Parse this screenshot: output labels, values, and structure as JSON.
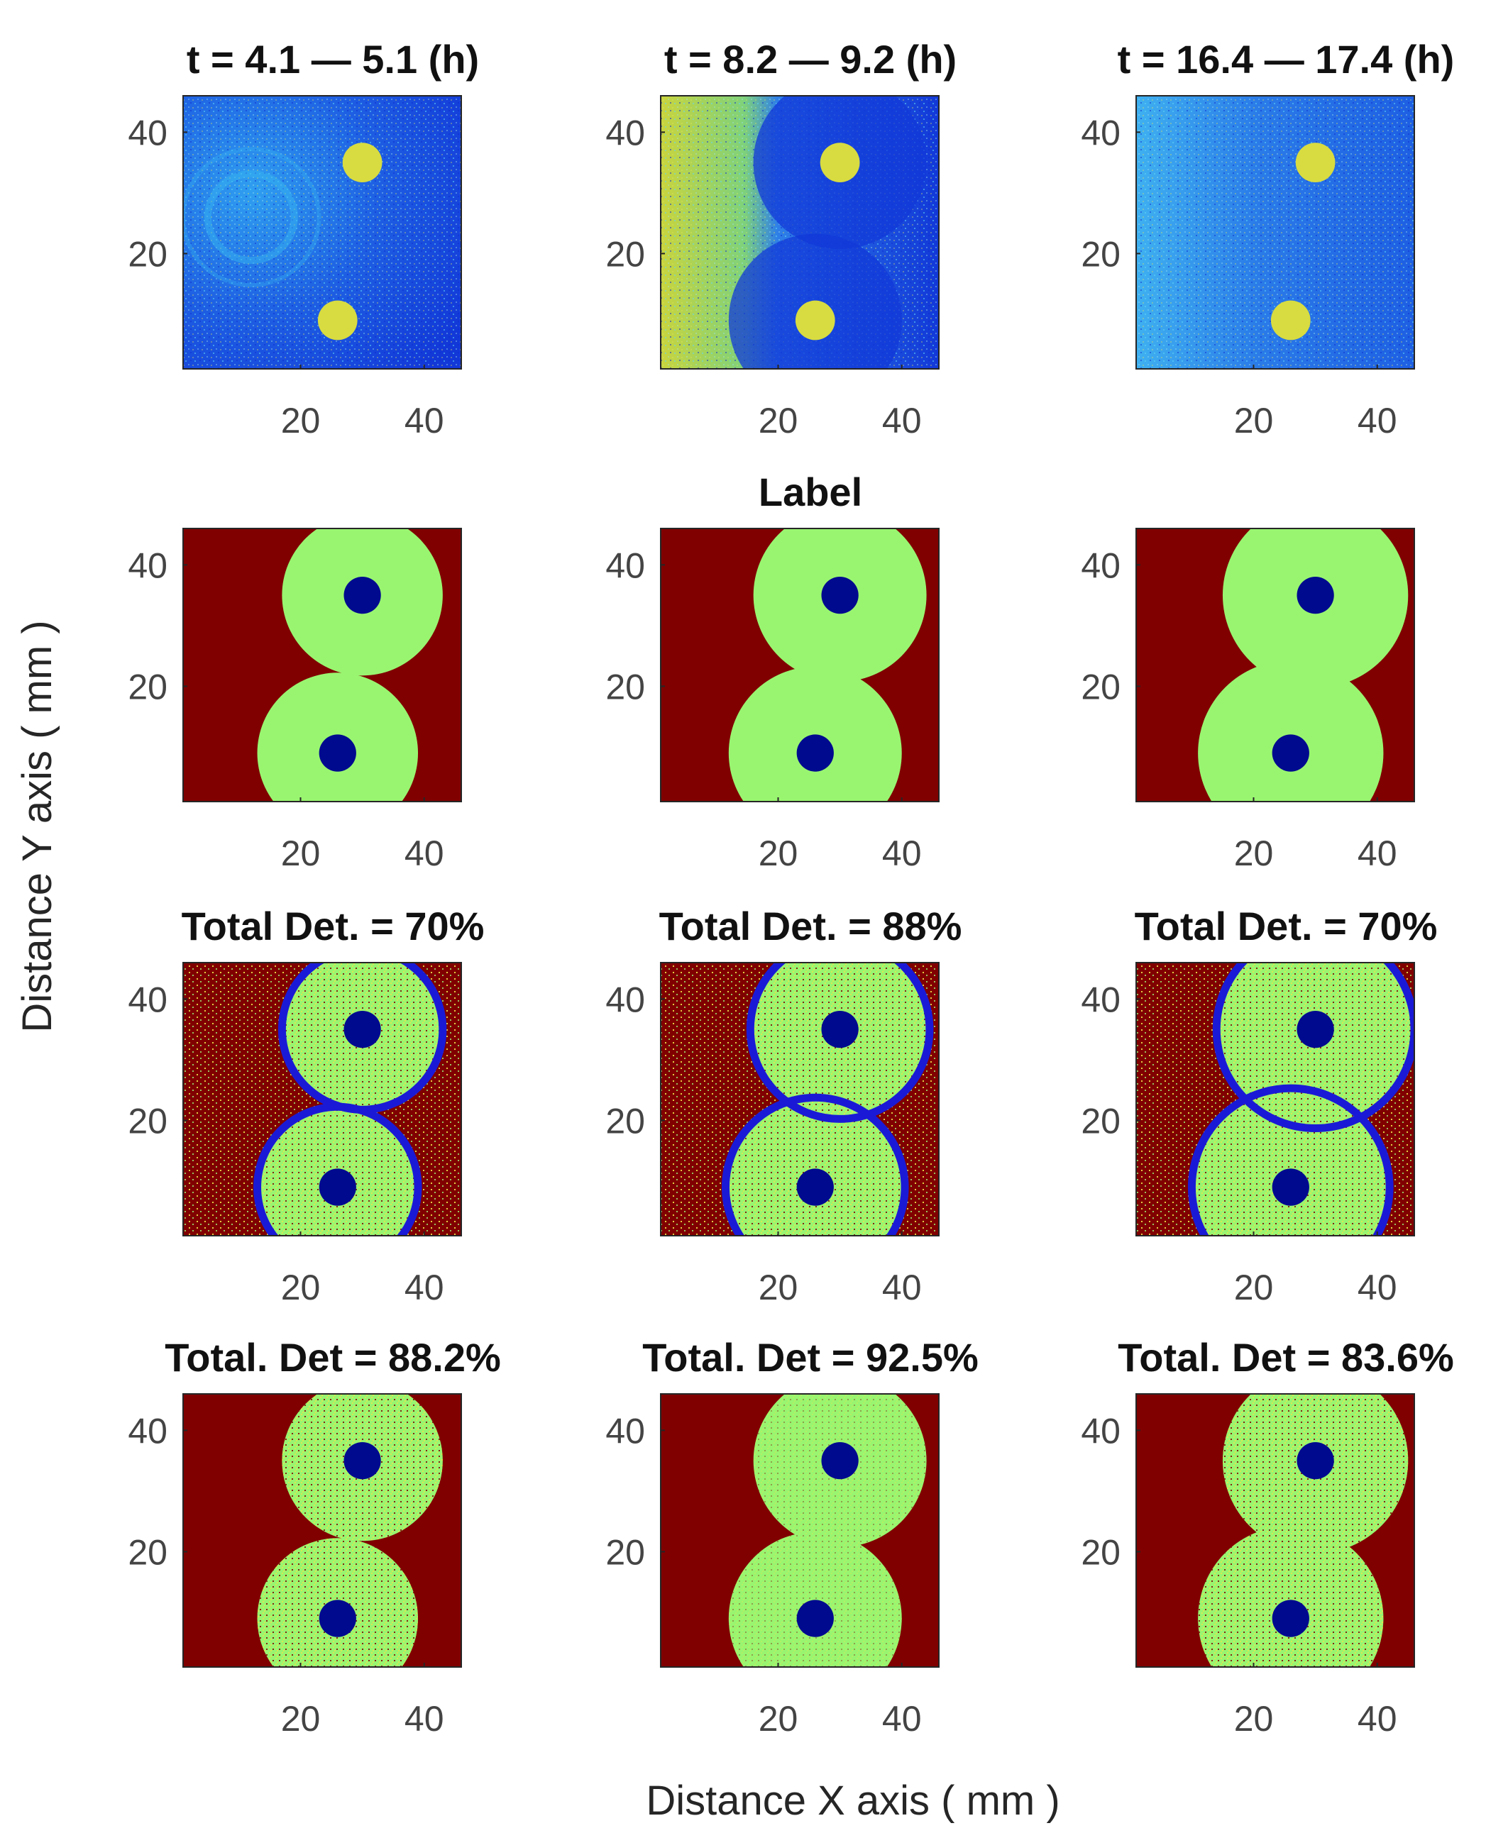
{
  "figure": {
    "xlabel": "Distance X axis ( mm )",
    "ylabel": "Distance Y axis ( mm )"
  },
  "chart_data": {
    "type": "heatmap",
    "xticks": [
      20,
      40
    ],
    "yticks": [
      20,
      40
    ],
    "xlim": [
      1,
      46
    ],
    "ylim": [
      1,
      46
    ],
    "tick_labels": {
      "t20": "20",
      "t40": "40"
    },
    "colors": {
      "background_red": "#800000",
      "ring_green": "#99f570",
      "source_blue": "#000a8f",
      "speckle_yellow": "#e8e44a",
      "fit_circle_blue": "#1a1ad6",
      "raw_blue": "#1238d8",
      "raw_cyan": "#36b4f0",
      "raw_yellow": "#d8dc40"
    },
    "sources": [
      {
        "x": 30,
        "y": 35
      },
      {
        "x": 26,
        "y": 9
      }
    ],
    "rows": [
      {
        "row": "raw_data",
        "panels": [
          {
            "title": "t = 4.1 — 5.1 (h)",
            "ring_radius_mm": 0
          },
          {
            "title": "t = 8.2 — 9.2 (h)",
            "ring_radius_mm": 0
          },
          {
            "title": "t = 16.4 — 17.4 (h)",
            "ring_radius_mm": 0
          }
        ]
      },
      {
        "row": "label",
        "row_title": "Label",
        "panels": [
          {
            "ring_radius_mm": 13
          },
          {
            "ring_radius_mm": 14
          },
          {
            "ring_radius_mm": 15
          }
        ]
      },
      {
        "row": "circle_fit_detection",
        "panels": [
          {
            "title": "Total Det. = 70%",
            "total_detection_percent": 70,
            "fit_radius_mm": 13
          },
          {
            "title": "Total Det. = 88%",
            "total_detection_percent": 88,
            "fit_radius_mm": 14.5
          },
          {
            "title": "Total Det. = 70%",
            "total_detection_percent": 70,
            "fit_radius_mm": 16
          }
        ]
      },
      {
        "row": "pixel_detection",
        "panels": [
          {
            "title": "Total. Det = 88.2%",
            "total_detection_percent": 88.2,
            "ring_radius_mm": 13
          },
          {
            "title": "Total. Det = 92.5%",
            "total_detection_percent": 92.5,
            "ring_radius_mm": 14
          },
          {
            "title": "Total. Det = 83.6%",
            "total_detection_percent": 83.6,
            "ring_radius_mm": 15
          }
        ]
      }
    ]
  }
}
